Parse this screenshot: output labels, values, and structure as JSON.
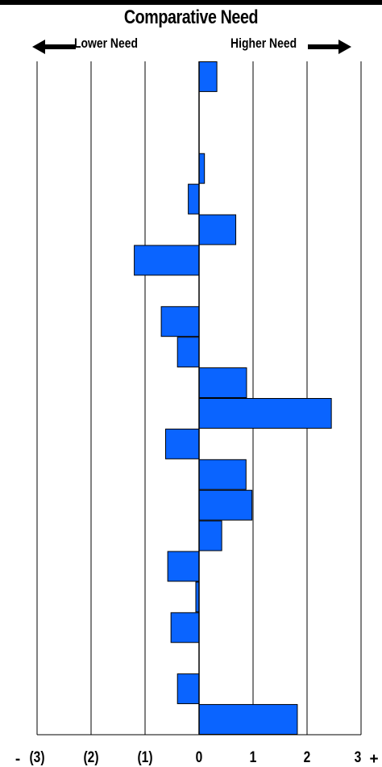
{
  "header": {
    "title": "Comparative Need",
    "lower_label": "Lower Need",
    "higher_label": "Higher Need"
  },
  "axis": {
    "minus_sign": "-",
    "plus_sign": "+"
  },
  "colors": {
    "bar_fill": "#0a64ff",
    "bar_stroke": "#000000",
    "grid": "#000000"
  },
  "chart_data": {
    "type": "bar",
    "orientation": "horizontal",
    "xlim": [
      -3,
      3
    ],
    "x_ticks": [
      -3,
      -2,
      -1,
      0,
      1,
      2,
      3
    ],
    "x_tick_labels": [
      "(3)",
      "(2)",
      "(1)",
      "0",
      "1",
      "2",
      "3"
    ],
    "grid": true,
    "values": [
      0.33,
      null,
      null,
      0.1,
      -0.2,
      0.68,
      -1.2,
      null,
      -0.7,
      -0.4,
      0.88,
      2.45,
      -0.62,
      0.87,
      0.98,
      0.42,
      -0.58,
      -0.06,
      -0.52,
      null,
      -0.4,
      1.82
    ]
  }
}
